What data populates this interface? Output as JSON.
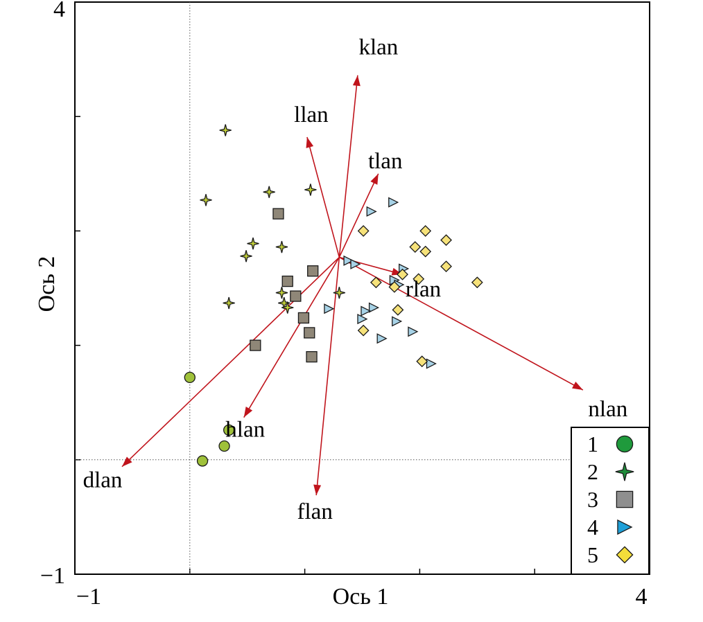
{
  "chart_data": {
    "type": "scatter",
    "title": "",
    "xlabel": "Ось 1",
    "ylabel": "Ось 2",
    "xlim": [
      -1,
      4
    ],
    "ylim": [
      -1,
      4
    ],
    "x_tick_labels": [
      "−1",
      "4"
    ],
    "y_tick_labels": [
      "4",
      "−1"
    ],
    "legend": {
      "position": "bottom-right",
      "entries": [
        {
          "label": "1",
          "marker": "circle",
          "color": "#1f9a3c"
        },
        {
          "label": "2",
          "marker": "star4",
          "color": "#1f8a3a"
        },
        {
          "label": "3",
          "marker": "square",
          "color": "#8f8f8f"
        },
        {
          "label": "4",
          "marker": "triangle-right",
          "color": "#1fa0d8"
        },
        {
          "label": "5",
          "marker": "diamond",
          "color": "#f3dd3a"
        }
      ]
    },
    "vectors": {
      "origin": [
        1.3,
        1.77
      ],
      "color": "#c0141c",
      "items": [
        {
          "label": "klan",
          "end": [
            1.46,
            3.36
          ]
        },
        {
          "label": "llan",
          "end": [
            1.02,
            2.82
          ]
        },
        {
          "label": "tlan",
          "end": [
            1.64,
            2.5
          ]
        },
        {
          "label": "rlan",
          "end": [
            1.85,
            1.62
          ]
        },
        {
          "label": "nlan",
          "end": [
            3.42,
            0.61
          ]
        },
        {
          "label": "hlan",
          "end": [
            0.47,
            0.37
          ]
        },
        {
          "label": "dlan",
          "end": [
            -0.59,
            -0.06
          ]
        },
        {
          "label": "flan",
          "end": [
            1.1,
            -0.31
          ]
        }
      ]
    },
    "series": [
      {
        "name": "1",
        "marker": "circle",
        "fill": "#9fc13a",
        "points": [
          [
            0.0,
            0.72
          ],
          [
            0.34,
            0.26
          ],
          [
            0.3,
            0.12
          ],
          [
            0.11,
            -0.01
          ]
        ]
      },
      {
        "name": "2",
        "marker": "star4",
        "fill": "#c4d23a",
        "points": [
          [
            0.31,
            2.88
          ],
          [
            0.14,
            2.27
          ],
          [
            0.69,
            2.34
          ],
          [
            1.05,
            2.36
          ],
          [
            0.55,
            1.89
          ],
          [
            0.49,
            1.78
          ],
          [
            0.8,
            1.86
          ],
          [
            0.34,
            1.37
          ],
          [
            0.8,
            1.46
          ],
          [
            0.82,
            1.37
          ],
          [
            0.85,
            1.33
          ],
          [
            1.3,
            1.46
          ]
        ]
      },
      {
        "name": "3",
        "marker": "square",
        "fill": "#8f8778",
        "points": [
          [
            0.77,
            2.15
          ],
          [
            1.07,
            1.65
          ],
          [
            0.85,
            1.56
          ],
          [
            0.92,
            1.43
          ],
          [
            0.99,
            1.24
          ],
          [
            1.04,
            1.11
          ],
          [
            0.57,
            1.0
          ],
          [
            1.06,
            0.9
          ]
        ]
      },
      {
        "name": "4",
        "marker": "triangle-right",
        "fill": "#a7d2e6",
        "points": [
          [
            1.77,
            2.25
          ],
          [
            1.58,
            2.17
          ],
          [
            1.38,
            1.74
          ],
          [
            1.44,
            1.71
          ],
          [
            1.86,
            1.67
          ],
          [
            1.78,
            1.57
          ],
          [
            1.82,
            1.53
          ],
          [
            1.6,
            1.33
          ],
          [
            1.53,
            1.3
          ],
          [
            1.21,
            1.32
          ],
          [
            1.5,
            1.23
          ],
          [
            1.8,
            1.21
          ],
          [
            1.94,
            1.12
          ],
          [
            1.67,
            1.06
          ],
          [
            2.1,
            0.84
          ]
        ]
      },
      {
        "name": "5",
        "marker": "diamond",
        "fill": "#f6e27a",
        "points": [
          [
            1.51,
            2.0
          ],
          [
            2.05,
            2.0
          ],
          [
            2.23,
            1.92
          ],
          [
            1.96,
            1.86
          ],
          [
            2.05,
            1.82
          ],
          [
            2.23,
            1.69
          ],
          [
            1.85,
            1.62
          ],
          [
            1.99,
            1.58
          ],
          [
            1.62,
            1.55
          ],
          [
            1.78,
            1.51
          ],
          [
            2.5,
            1.55
          ],
          [
            1.81,
            1.31
          ],
          [
            1.51,
            1.13
          ],
          [
            2.02,
            0.86
          ]
        ]
      }
    ]
  }
}
